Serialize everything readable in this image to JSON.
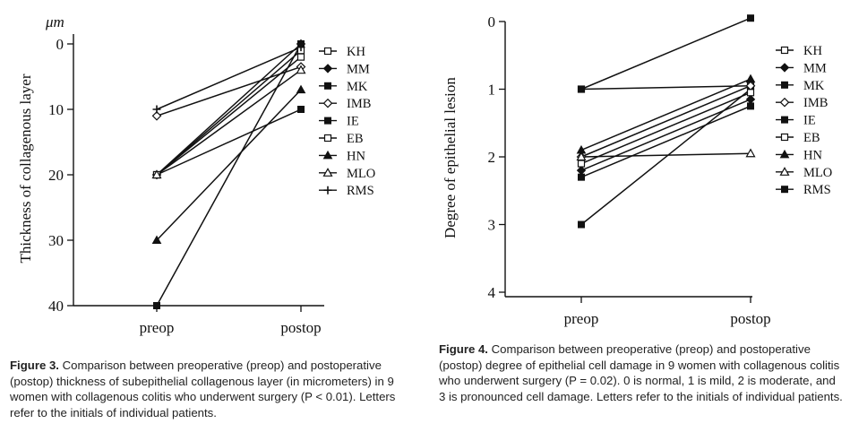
{
  "chart_data": [
    {
      "type": "line",
      "title": "",
      "unit_label": "μm",
      "ylabel": "Thickness of collagenous layer",
      "xlabel": "",
      "categories": [
        "preop",
        "postop"
      ],
      "ylim": [
        0,
        40
      ],
      "yticks": [
        "0",
        "10",
        "20",
        "30",
        "40"
      ],
      "grid": false,
      "legend_position": "top-right",
      "series": [
        {
          "name": "KH",
          "marker": "open-square",
          "values": [
            20,
            2
          ]
        },
        {
          "name": "MM",
          "marker": "filled-diamond",
          "values": [
            20,
            0
          ]
        },
        {
          "name": "MK",
          "marker": "filled-square",
          "values": [
            40,
            0
          ]
        },
        {
          "name": "IMB",
          "marker": "open-diamond",
          "values": [
            11,
            3.5
          ]
        },
        {
          "name": "IE",
          "marker": "filled-square",
          "values": [
            20,
            10
          ]
        },
        {
          "name": "EB",
          "marker": "open-square",
          "values": [
            20,
            1
          ]
        },
        {
          "name": "HN",
          "marker": "filled-triangle",
          "values": [
            30,
            7
          ]
        },
        {
          "name": "MLO",
          "marker": "open-triangle",
          "values": [
            20,
            4
          ]
        },
        {
          "name": "RMS",
          "marker": "plus",
          "values": [
            10,
            0.5
          ]
        }
      ]
    },
    {
      "type": "line",
      "title": "",
      "ylabel": "Degree of epithelial lesion",
      "xlabel": "",
      "categories": [
        "preop",
        "postop"
      ],
      "ylim": [
        0,
        4
      ],
      "yticks": [
        "0",
        "1",
        "2",
        "3",
        "4"
      ],
      "grid": false,
      "legend_position": "top-right",
      "series": [
        {
          "name": "KH",
          "marker": "open-square",
          "values": [
            1.0,
            0.95
          ]
        },
        {
          "name": "MM",
          "marker": "filled-diamond",
          "values": [
            2.2,
            1.15
          ]
        },
        {
          "name": "MK",
          "marker": "filled-square",
          "values": [
            3.0,
            1.0
          ]
        },
        {
          "name": "IMB",
          "marker": "open-diamond",
          "values": [
            2.0,
            0.95
          ]
        },
        {
          "name": "IE",
          "marker": "filled-square",
          "values": [
            2.3,
            1.25
          ]
        },
        {
          "name": "EB",
          "marker": "open-square",
          "values": [
            2.1,
            1.05
          ]
        },
        {
          "name": "HN",
          "marker": "filled-triangle",
          "values": [
            1.9,
            0.85
          ]
        },
        {
          "name": "MLO",
          "marker": "open-triangle",
          "values": [
            2.0,
            1.95
          ]
        },
        {
          "name": "RMS",
          "marker": "filled-square",
          "values": [
            1.0,
            -0.05
          ]
        }
      ]
    }
  ],
  "captions": {
    "left": {
      "label": "Figure 3.",
      "text": " Comparison between preoperative (preop) and postoperative (postop) thickness of subepithelial collagenous layer (in micrometers) in 9 women with collagenous colitis who underwent surgery (P < 0.01). Letters refer to the initials of individual patients."
    },
    "right": {
      "label": "Figure 4.",
      "text": " Comparison between preoperative (preop) and postoperative (postop) degree of epithelial cell damage in 9 women with collagenous colitis who underwent surgery (P = 0.02). 0 is normal, 1 is mild, 2 is moderate, and 3 is pronounced cell damage. Letters refer to the initials of individual patients."
    }
  }
}
